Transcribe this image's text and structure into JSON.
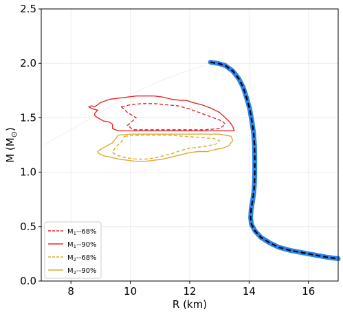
{
  "chart_data": {
    "type": "line",
    "title": "",
    "xlabel": "R (km)",
    "ylabel_main": "M (M",
    "ylabel_sub": "⊙",
    "ylabel_close": ")",
    "xlim": [
      7.0,
      17.0
    ],
    "ylim": [
      0.0,
      2.5
    ],
    "xticks": [
      8,
      10,
      12,
      14,
      16
    ],
    "xtick_labels": [
      "8",
      "10",
      "12",
      "14",
      "16"
    ],
    "yticks": [
      0.0,
      0.5,
      1.0,
      1.5,
      2.0,
      2.5
    ],
    "ytick_labels": [
      "0.0",
      "0.5",
      "1.0",
      "1.5",
      "2.0",
      "2.5"
    ],
    "grid": true,
    "legend_position": "lower-left",
    "legend": [
      {
        "main": "M",
        "sub": "1",
        "suffix": "--68%",
        "color": "#e8262a",
        "dash": true
      },
      {
        "main": "M",
        "sub": "1",
        "suffix": "--90%",
        "color": "#e8262a",
        "dash": false
      },
      {
        "main": "M",
        "sub": "2",
        "suffix": "--68%",
        "color": "#dcaa30",
        "dash": true
      },
      {
        "main": "M",
        "sub": "2",
        "suffix": "--90%",
        "color": "#dcaa30",
        "dash": false
      }
    ],
    "series": [
      {
        "role": "mr-curve-band",
        "color": "#2a85ee",
        "x": [
          12.7,
          12.95,
          13.2,
          13.45,
          13.65,
          13.8,
          13.92,
          14.02,
          14.1,
          14.15,
          14.18,
          14.19,
          14.19,
          14.18,
          14.16,
          14.12,
          14.07,
          14.05,
          14.08,
          14.2,
          14.4,
          14.7,
          15.0,
          15.4,
          15.8,
          16.2,
          16.6,
          17.0
        ],
        "y": [
          2.01,
          2.0,
          1.98,
          1.93,
          1.86,
          1.78,
          1.68,
          1.58,
          1.46,
          1.36,
          1.25,
          1.13,
          1.0,
          0.9,
          0.82,
          0.74,
          0.66,
          0.58,
          0.52,
          0.46,
          0.4,
          0.35,
          0.31,
          0.28,
          0.26,
          0.24,
          0.22,
          0.205
        ]
      },
      {
        "role": "mr-curve-dashed",
        "color": "#000000",
        "x": [
          12.7,
          12.95,
          13.2,
          13.45,
          13.65,
          13.8,
          13.92,
          14.02,
          14.1,
          14.15,
          14.18,
          14.19,
          14.19,
          14.18,
          14.16,
          14.12,
          14.07,
          14.05,
          14.08,
          14.2,
          14.4,
          14.7,
          15.0,
          15.4,
          15.8,
          16.2,
          16.6,
          17.0
        ],
        "y": [
          2.01,
          2.0,
          1.98,
          1.93,
          1.86,
          1.78,
          1.68,
          1.58,
          1.46,
          1.36,
          1.25,
          1.13,
          1.0,
          0.9,
          0.82,
          0.74,
          0.66,
          0.58,
          0.52,
          0.46,
          0.4,
          0.35,
          0.31,
          0.28,
          0.26,
          0.24,
          0.22,
          0.205
        ]
      },
      {
        "role": "faint-curve",
        "color": "#eeeeee",
        "x": [
          7.1,
          7.6,
          8.2,
          8.8,
          9.5,
          10.3,
          11.1,
          11.9,
          12.5
        ],
        "y": [
          1.25,
          1.33,
          1.42,
          1.52,
          1.63,
          1.75,
          1.85,
          1.93,
          1.98
        ]
      }
    ],
    "contours": [
      {
        "name": "M1--90%",
        "color": "#e8262a",
        "dash": false,
        "x": [
          8.8,
          9.0,
          9.3,
          9.6,
          9.9,
          10.2,
          10.5,
          10.8,
          11.1,
          11.4,
          11.7,
          11.9,
          12.1,
          12.4,
          12.7,
          13.0,
          13.2,
          13.35,
          13.45,
          13.5,
          13.4,
          13.2,
          12.8,
          12.4,
          12.0,
          11.5,
          11.0,
          10.5,
          10.0,
          9.6,
          9.4,
          9.4,
          9.3,
          9.1,
          8.9,
          8.8,
          8.8,
          8.9,
          8.75,
          8.6,
          8.7,
          8.8
        ],
        "y": [
          1.6,
          1.64,
          1.67,
          1.68,
          1.69,
          1.7,
          1.7,
          1.7,
          1.69,
          1.67,
          1.66,
          1.66,
          1.64,
          1.62,
          1.59,
          1.55,
          1.5,
          1.46,
          1.42,
          1.38,
          1.38,
          1.38,
          1.38,
          1.38,
          1.38,
          1.38,
          1.38,
          1.38,
          1.38,
          1.38,
          1.4,
          1.44,
          1.46,
          1.47,
          1.5,
          1.52,
          1.54,
          1.57,
          1.58,
          1.6,
          1.61,
          1.6
        ]
      },
      {
        "name": "M1--68%",
        "color": "#e8262a",
        "dash": true,
        "x": [
          9.7,
          10.0,
          10.4,
          10.8,
          11.2,
          11.6,
          12.0,
          12.4,
          12.8,
          13.1,
          13.2,
          13.0,
          12.5,
          12.0,
          11.5,
          11.0,
          10.5,
          10.1,
          9.9,
          10.2,
          9.9,
          9.7
        ],
        "y": [
          1.6,
          1.62,
          1.63,
          1.63,
          1.62,
          1.61,
          1.58,
          1.54,
          1.5,
          1.47,
          1.44,
          1.4,
          1.39,
          1.39,
          1.39,
          1.39,
          1.39,
          1.39,
          1.43,
          1.5,
          1.55,
          1.6
        ]
      },
      {
        "name": "M2--90%",
        "color": "#dcaa30",
        "dash": false,
        "x": [
          9.6,
          10.0,
          10.5,
          11.0,
          11.5,
          12.0,
          12.5,
          13.0,
          13.4,
          13.45,
          13.3,
          13.1,
          12.9,
          12.6,
          12.3,
          12.0,
          11.7,
          11.4,
          11.1,
          10.8,
          10.5,
          10.2,
          9.9,
          9.6,
          9.3,
          9.1,
          8.95,
          8.9,
          9.0,
          9.2,
          9.4,
          9.6
        ],
        "y": [
          1.34,
          1.35,
          1.35,
          1.35,
          1.35,
          1.35,
          1.35,
          1.35,
          1.33,
          1.29,
          1.24,
          1.22,
          1.21,
          1.19,
          1.19,
          1.18,
          1.16,
          1.14,
          1.12,
          1.11,
          1.1,
          1.1,
          1.11,
          1.12,
          1.14,
          1.15,
          1.17,
          1.19,
          1.21,
          1.24,
          1.27,
          1.34
        ]
      },
      {
        "name": "M2--68%",
        "color": "#dcaa30",
        "dash": true,
        "x": [
          9.8,
          10.3,
          10.8,
          11.3,
          11.8,
          12.3,
          12.8,
          13.0,
          12.9,
          12.6,
          12.3,
          12.0,
          11.7,
          11.4,
          11.1,
          10.8,
          10.5,
          10.2,
          9.9,
          9.6,
          9.4,
          9.5,
          9.7,
          9.8
        ],
        "y": [
          1.33,
          1.34,
          1.34,
          1.34,
          1.33,
          1.32,
          1.31,
          1.29,
          1.26,
          1.24,
          1.23,
          1.22,
          1.2,
          1.17,
          1.15,
          1.13,
          1.12,
          1.12,
          1.13,
          1.15,
          1.18,
          1.23,
          1.28,
          1.33
        ]
      }
    ]
  }
}
